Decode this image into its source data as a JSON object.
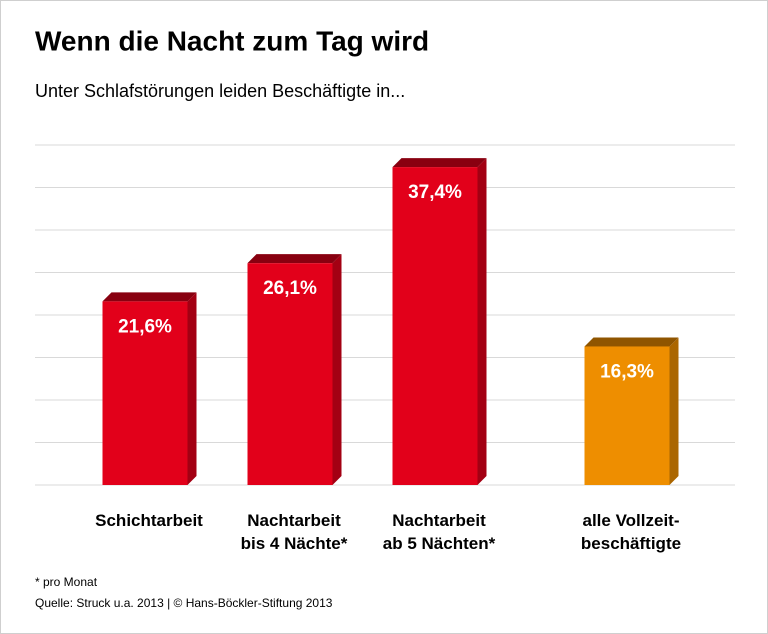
{
  "chart_data": {
    "type": "bar",
    "title": "Wenn die Nacht zum Tag wird",
    "subtitle": "Unter Schlafstörungen leiden Beschäftigte in...",
    "categories": [
      "Schichtarbeit",
      "Nachtarbeit\nbis 4 Nächte*",
      "Nachtarbeit\nab 5 Nächten*",
      "alle Vollzeit-\nbeschäftigte"
    ],
    "values": [
      21.6,
      26.1,
      37.4,
      16.3
    ],
    "value_labels": [
      "21,6%",
      "26,1%",
      "37,4%",
      "16,3%"
    ],
    "colors": [
      "#e2001a",
      "#e2001a",
      "#e2001a",
      "#ee8e00"
    ],
    "ylim": [
      0,
      40
    ],
    "yticks": [
      0,
      5,
      10,
      15,
      20,
      25,
      30,
      35,
      40
    ],
    "grid": true,
    "footnote": "* pro Monat",
    "source": "Quelle: Struck u.a. 2013 | © Hans-Böckler-Stiftung 2013"
  }
}
